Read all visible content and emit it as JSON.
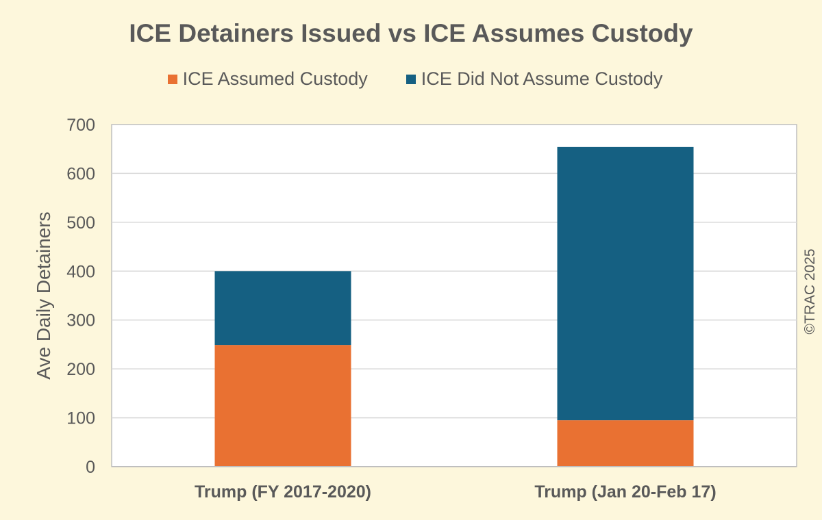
{
  "chart_data": {
    "type": "bar",
    "stacked": true,
    "title": "ICE Detainers Issued vs ICE Assumes Custody",
    "xlabel": "",
    "ylabel": "Ave Daily Detainers",
    "ylim": [
      0,
      700
    ],
    "yticks": [
      0,
      100,
      200,
      300,
      400,
      500,
      600,
      700
    ],
    "grid": true,
    "legend_position": "top",
    "categories": [
      "Trump (FY 2017-2020)",
      "Trump (Jan 20-Feb 17)"
    ],
    "series": [
      {
        "name": "ICE Assumed Custody",
        "color": "#e97132",
        "values": [
          249,
          95
        ]
      },
      {
        "name": "ICE Did Not Assume Custody",
        "color": "#156082",
        "values": [
          151,
          559
        ]
      }
    ]
  },
  "copyright": "©TRAC 2025"
}
